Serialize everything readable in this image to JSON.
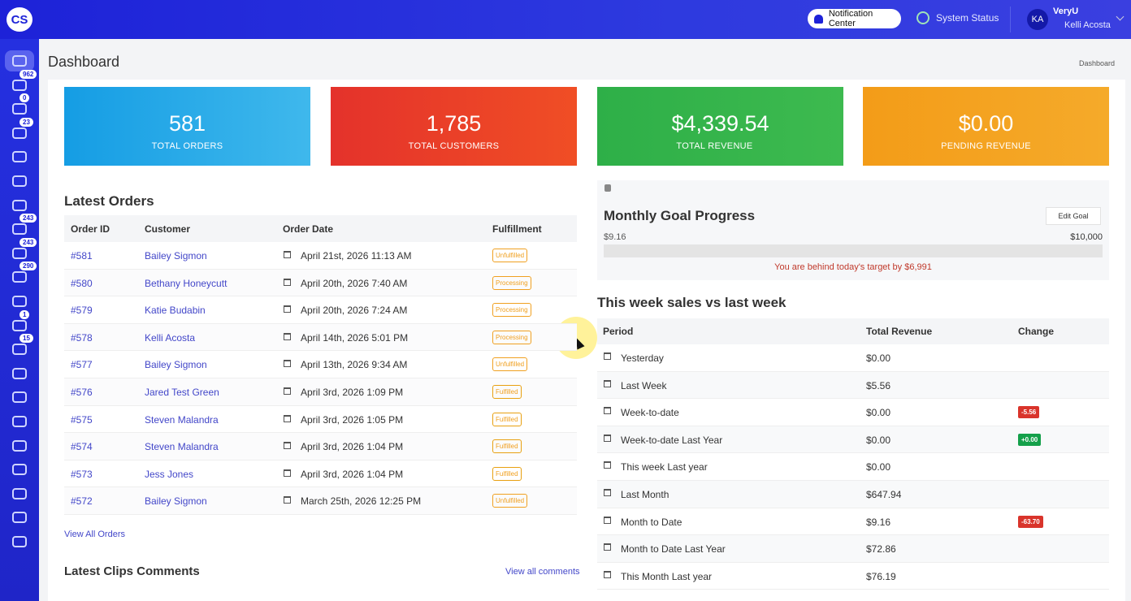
{
  "header": {
    "logo": "CS",
    "notification": "Notification Center",
    "system_status": "System Status",
    "avatar": "KA",
    "org": "VeryU",
    "user": "Kelli Acosta"
  },
  "sidebar": {
    "badges": [
      "962",
      "0",
      "23",
      "243",
      "243",
      "290",
      "1",
      "15"
    ]
  },
  "page": {
    "title": "Dashboard",
    "breadcrumb": "Dashboard"
  },
  "stats": [
    {
      "value": "581",
      "label": "TOTAL ORDERS"
    },
    {
      "value": "1,785",
      "label": "TOTAL CUSTOMERS"
    },
    {
      "value": "$4,339.54",
      "label": "TOTAL REVENUE"
    },
    {
      "value": "$0.00",
      "label": "PENDING REVENUE"
    }
  ],
  "orders": {
    "title": "Latest Orders",
    "columns": [
      "Order ID",
      "Customer",
      "Order Date",
      "Fulfillment"
    ],
    "rows": [
      [
        "#581",
        "Bailey Sigmon",
        "April 21st, 2026 11:13 AM",
        "Unfulfilled"
      ],
      [
        "#580",
        "Bethany Honeycutt",
        "April 20th, 2026 7:40 AM",
        "Processing"
      ],
      [
        "#579",
        "Katie Budabin",
        "April 20th, 2026 7:24 AM",
        "Processing"
      ],
      [
        "#578",
        "Kelli Acosta",
        "April 14th, 2026 5:01 PM",
        "Processing"
      ],
      [
        "#577",
        "Bailey Sigmon",
        "April 13th, 2026 9:34 AM",
        "Unfulfilled"
      ],
      [
        "#576",
        "Jared Test Green",
        "April 3rd, 2026 1:09 PM",
        "Fulfilled"
      ],
      [
        "#575",
        "Steven Malandra",
        "April 3rd, 2026 1:05 PM",
        "Fulfilled"
      ],
      [
        "#574",
        "Steven Malandra",
        "April 3rd, 2026 1:04 PM",
        "Fulfilled"
      ],
      [
        "#573",
        "Jess Jones",
        "April 3rd, 2026 1:04 PM",
        "Fulfilled"
      ],
      [
        "#572",
        "Bailey Sigmon",
        "March 25th, 2026 12:25 PM",
        "Unfulfilled"
      ]
    ],
    "link": "View All Orders"
  },
  "comments": {
    "title": "Latest Clips Comments",
    "link": "View all comments"
  },
  "goal": {
    "title": "Monthly Goal Progress",
    "button": "Edit Goal",
    "current": "$9.16",
    "target": "$10,000",
    "message": "You are behind today's target by $6,991"
  },
  "weekly": {
    "title": "This week sales vs last week",
    "columns": [
      "Period",
      "Total Revenue",
      "Change"
    ],
    "rows": [
      {
        "period": "Yesterday",
        "revenue": "$0.00"
      },
      {
        "period": "Last Week",
        "revenue": "$5.56"
      },
      {
        "period": "Week-to-date",
        "revenue": "$0.00",
        "change": "-5.56"
      },
      {
        "period": "Week-to-date Last Year",
        "revenue": "$0.00",
        "change": "+0.00"
      },
      {
        "period": "This week Last year",
        "revenue": "$0.00"
      },
      {
        "period": "Last Month",
        "revenue": "$647.94"
      },
      {
        "period": "Month to Date",
        "revenue": "$9.16",
        "change": "-63.70"
      },
      {
        "period": "Month to Date Last Year",
        "revenue": "$72.86"
      },
      {
        "period": "This Month Last year",
        "revenue": "$76.19"
      }
    ]
  }
}
